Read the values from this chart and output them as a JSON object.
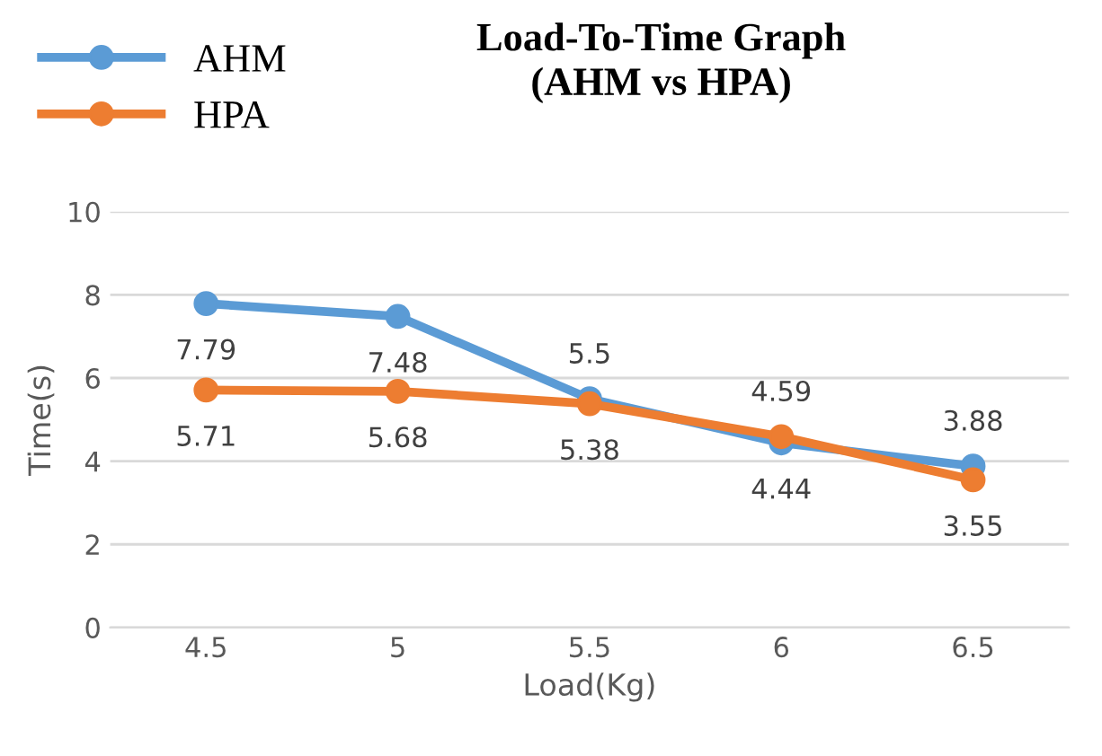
{
  "chart_data": {
    "type": "line",
    "title": "Load-To-Time Graph\n(AHM vs HPA)",
    "xlabel": "Load(Kg)",
    "ylabel": "Time(s)",
    "categories": [
      "4.5",
      "5",
      "5.5",
      "6",
      "6.5"
    ],
    "series": [
      {
        "name": "AHM",
        "color": "#5b9bd5",
        "values": [
          7.79,
          7.48,
          5.5,
          4.44,
          3.88
        ]
      },
      {
        "name": "HPA",
        "color": "#ed7d31",
        "values": [
          5.71,
          5.68,
          5.38,
          4.59,
          3.55
        ]
      }
    ],
    "ylim": [
      0,
      10
    ],
    "yticks": [
      0,
      2,
      4,
      6,
      8,
      10
    ],
    "grid": "y",
    "legend": "top left",
    "marker": "circle",
    "line_style": "solid",
    "data_labels": true
  }
}
